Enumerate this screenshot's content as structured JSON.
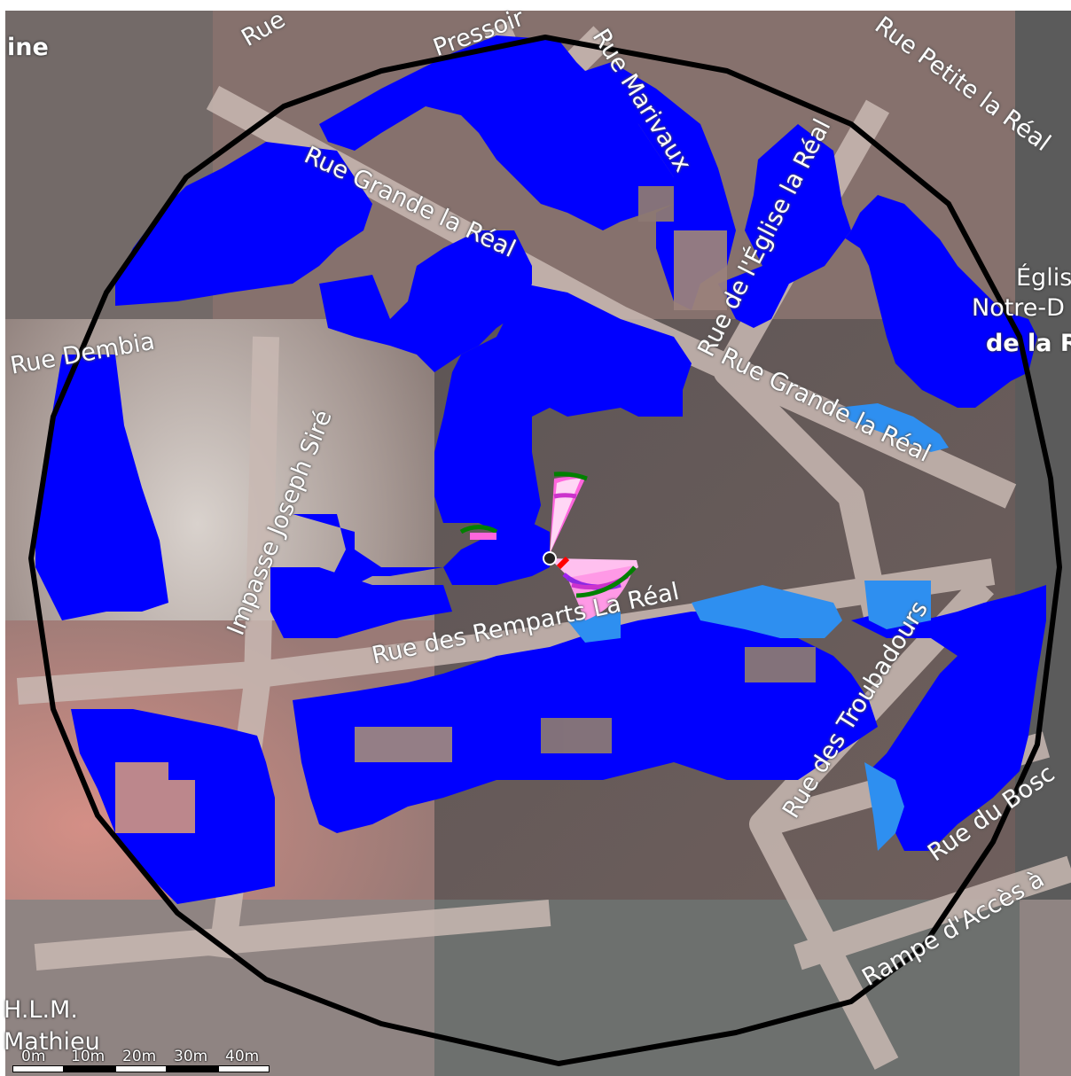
{
  "map": {
    "colors": {
      "building_coverage": "#0000ff",
      "weak_coverage": "#2e8ff0",
      "boundary": "#000000",
      "road": "#c9b9b3",
      "background_warm": "#b48a83",
      "background_grey": "#8a8a8a",
      "antenna_magenta": "#ff33cc",
      "antenna_purple": "#8a2be2",
      "antenna_green": "#008000",
      "antenna_red": "#ff0000"
    },
    "streets": [
      {
        "label": "Rue Grande la Réal"
      },
      {
        "label": "Rue Grande la Réal"
      },
      {
        "label": "Rue Marivaux"
      },
      {
        "label": "Rue Petite la Réal"
      },
      {
        "label": "Rue de l'Église la Réal"
      },
      {
        "label": "Impasse Joseph Siré"
      },
      {
        "label": "Rue des Remparts La Réal"
      },
      {
        "label": "Rue des Troubadours"
      },
      {
        "label": "Rue du Bosc"
      },
      {
        "label": "Rampe d'Accès à"
      },
      {
        "label": "Rue"
      },
      {
        "label": "Pressoir"
      },
      {
        "label": "Rue Dembia"
      }
    ],
    "places": [
      {
        "label": "ine"
      },
      {
        "label": "Églis"
      },
      {
        "label": "Notre-D"
      },
      {
        "label": "de la R"
      },
      {
        "label": "H.L.M."
      },
      {
        "label": "Mathieu"
      }
    ],
    "scale_bar": {
      "labels": [
        "0m",
        "10m",
        "20m",
        "30m",
        "40m"
      ]
    }
  }
}
